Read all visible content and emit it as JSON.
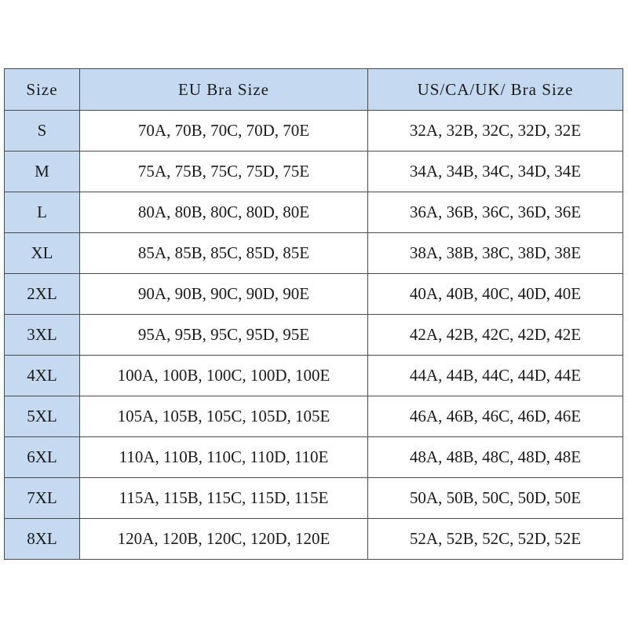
{
  "table": {
    "headers": [
      "Size",
      "EU Bra Size",
      "US/CA/UK/ Bra Size"
    ],
    "header_color": "#c5daf0",
    "rows": [
      [
        "S",
        "70A, 70B, 70C, 70D, 70E",
        "32A, 32B, 32C, 32D, 32E"
      ],
      [
        "M",
        "75A, 75B, 75C, 75D, 75E",
        "34A, 34B, 34C, 34D, 34E"
      ],
      [
        "L",
        "80A, 80B, 80C, 80D, 80E",
        "36A, 36B, 36C, 36D, 36E"
      ],
      [
        "XL",
        "85A, 85B, 85C, 85D, 85E",
        "38A, 38B, 38C, 38D, 38E"
      ],
      [
        "2XL",
        "90A, 90B, 90C, 90D, 90E",
        "40A, 40B, 40C, 40D, 40E"
      ],
      [
        "3XL",
        "95A, 95B, 95C, 95D, 95E",
        "42A, 42B, 42C, 42D, 42E"
      ],
      [
        "4XL",
        "100A, 100B, 100C, 100D, 100E",
        "44A, 44B, 44C, 44D, 44E"
      ],
      [
        "5XL",
        "105A, 105B, 105C, 105D, 105E",
        "46A, 46B, 46C, 46D, 46E"
      ],
      [
        "6XL",
        "110A, 110B, 110C, 110D, 110E",
        "48A, 48B, 48C, 48D, 48E"
      ],
      [
        "7XL",
        "115A, 115B, 115C, 115D, 115E",
        "50A, 50B, 50C, 50D, 50E"
      ],
      [
        "8XL",
        "120A, 120B, 120C, 120D, 120E",
        "52A, 52B, 52C, 52D, 52E"
      ]
    ]
  }
}
